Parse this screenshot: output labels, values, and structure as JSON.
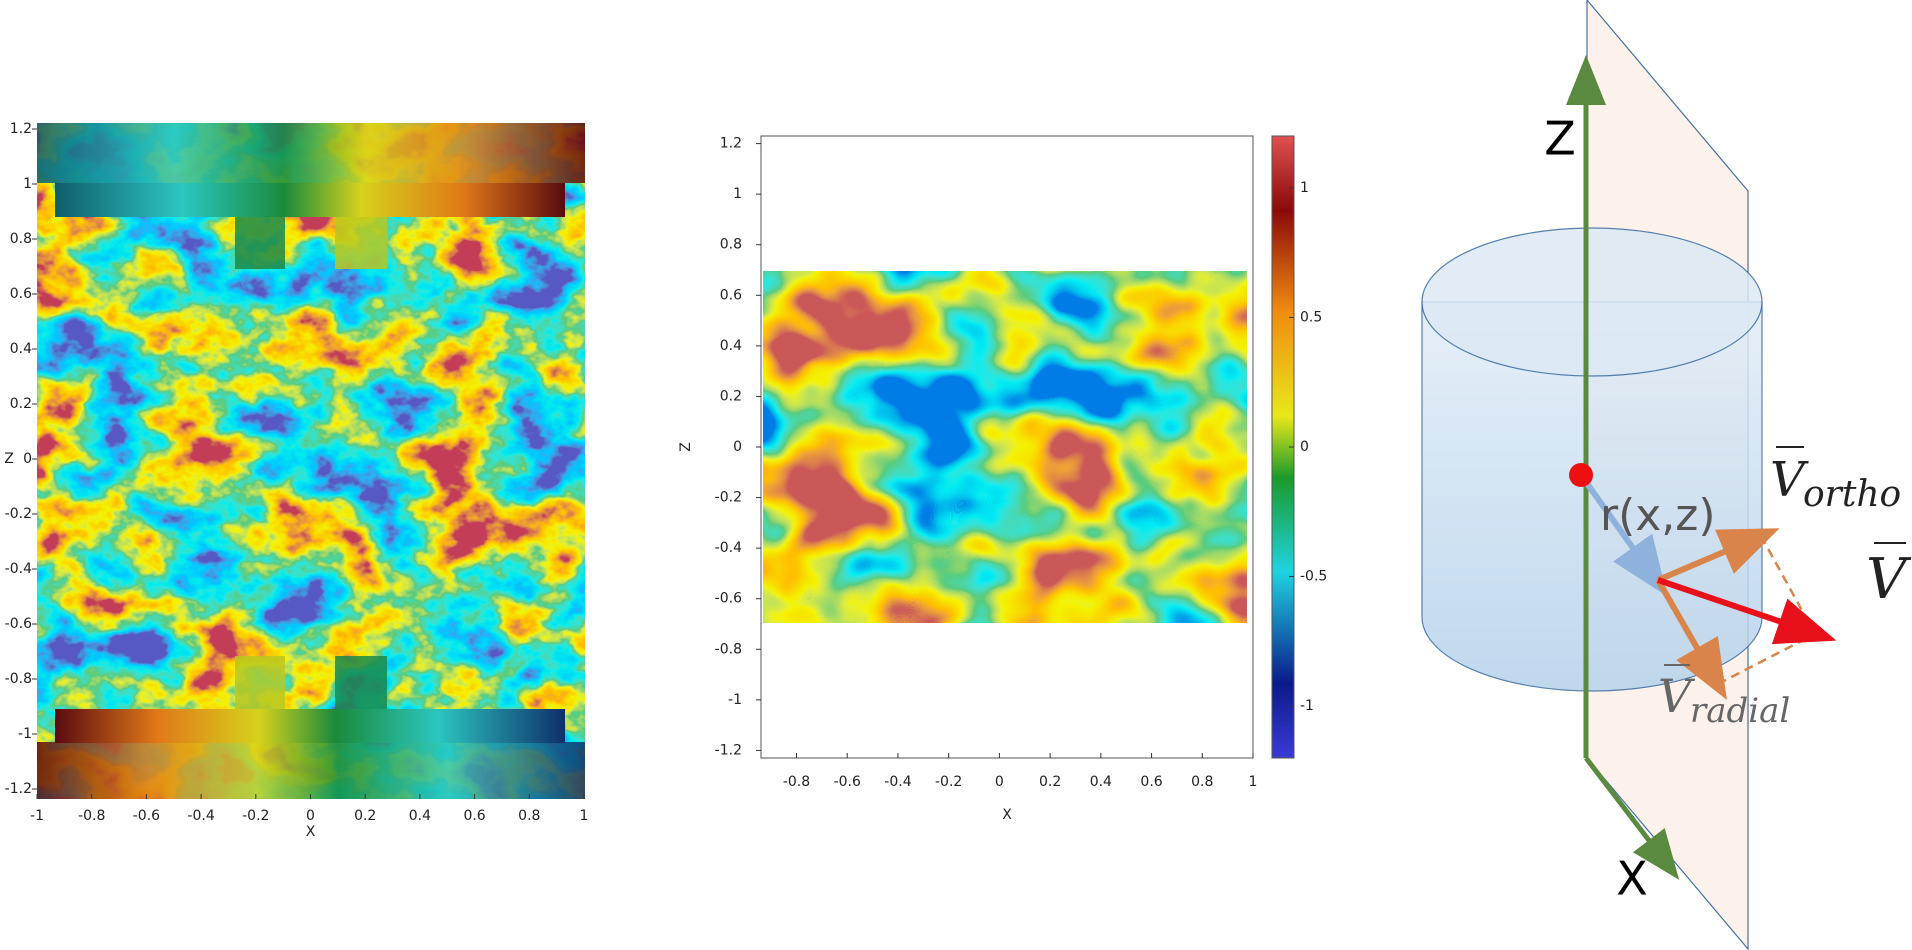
{
  "left_panel": {
    "x_label": "X",
    "y_label": "Z",
    "xlim": [
      -1,
      1
    ],
    "xticks": [
      -1,
      -0.8,
      -0.6,
      -0.4,
      -0.2,
      0,
      0.2,
      0.4,
      0.6,
      0.8,
      1
    ],
    "ylim": [
      -1.2,
      1.2
    ],
    "yticks": [
      -1.2,
      -1,
      -0.8,
      -0.6,
      -0.4,
      -0.2,
      0,
      0.2,
      0.4,
      0.6,
      0.8,
      1,
      1.2
    ]
  },
  "middle_panel": {
    "x_label": "X",
    "y_label": "Z",
    "xlim": [
      -0.94,
      1
    ],
    "xticks": [
      -0.8,
      -0.6,
      -0.4,
      -0.2,
      0,
      0.2,
      0.4,
      0.6,
      0.8,
      1
    ],
    "ylim": [
      -1.23,
      1.23
    ],
    "yticks": [
      -1.2,
      -1,
      -0.8,
      -0.6,
      -0.4,
      -0.2,
      0,
      0.2,
      0.4,
      0.6,
      0.8,
      1,
      1.2
    ],
    "colorbar": {
      "lim": [
        -1.2,
        1.2
      ],
      "ticks": [
        -1,
        -0.5,
        0,
        0.5,
        1
      ]
    }
  },
  "diagram": {
    "z_axis": "Z",
    "x_axis": "X",
    "radius": "r(x,z)",
    "vector": "V",
    "ortho": "ortho",
    "radial": "radial"
  }
}
